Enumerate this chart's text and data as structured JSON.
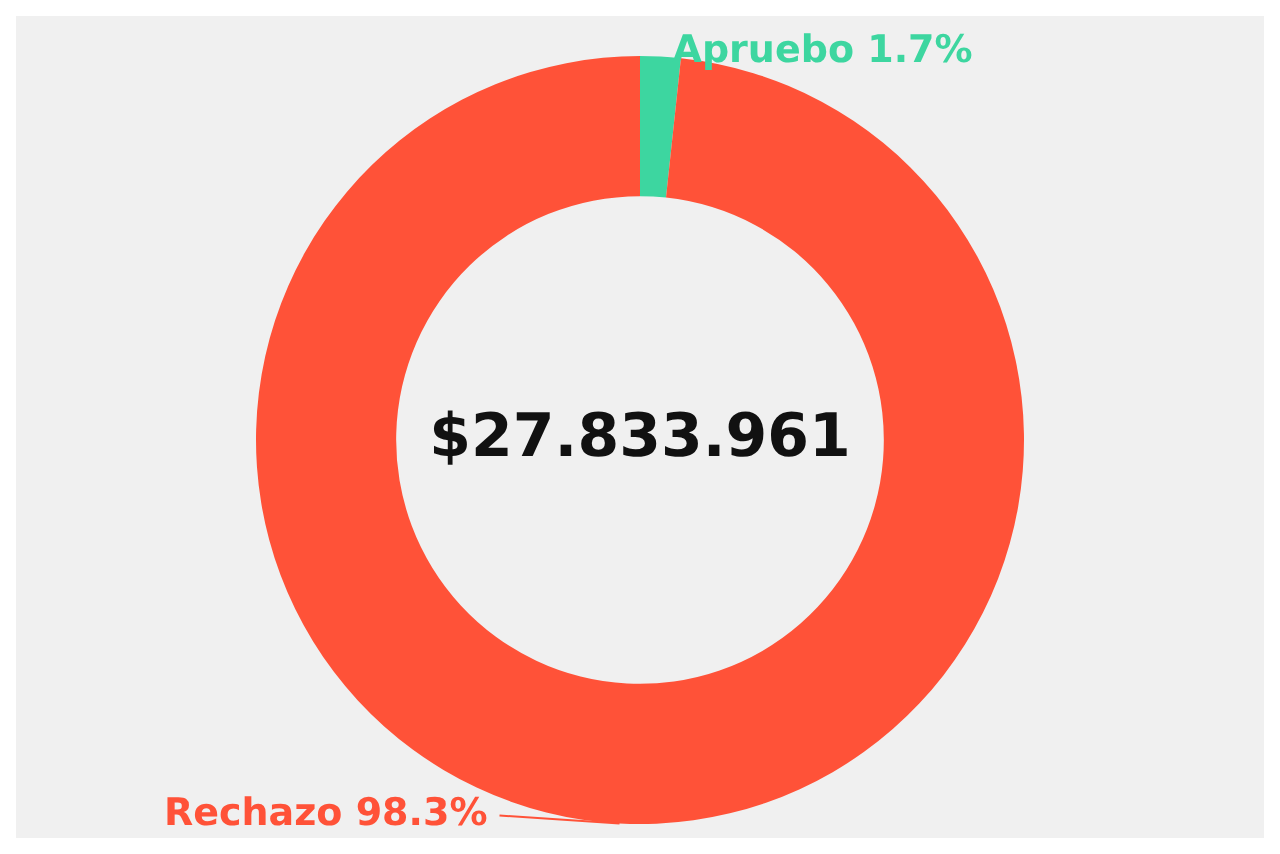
{
  "chart_data": {
    "type": "donut",
    "categories": [
      "Apruebo",
      "Rechazo"
    ],
    "values": [
      1.7,
      98.3
    ],
    "value_labels": [
      "1.7%",
      "98.3%"
    ],
    "colors": [
      "#3dd6a0",
      "#ff5238"
    ],
    "legend": false,
    "annotations": [
      "$27.833.961"
    ]
  }
}
